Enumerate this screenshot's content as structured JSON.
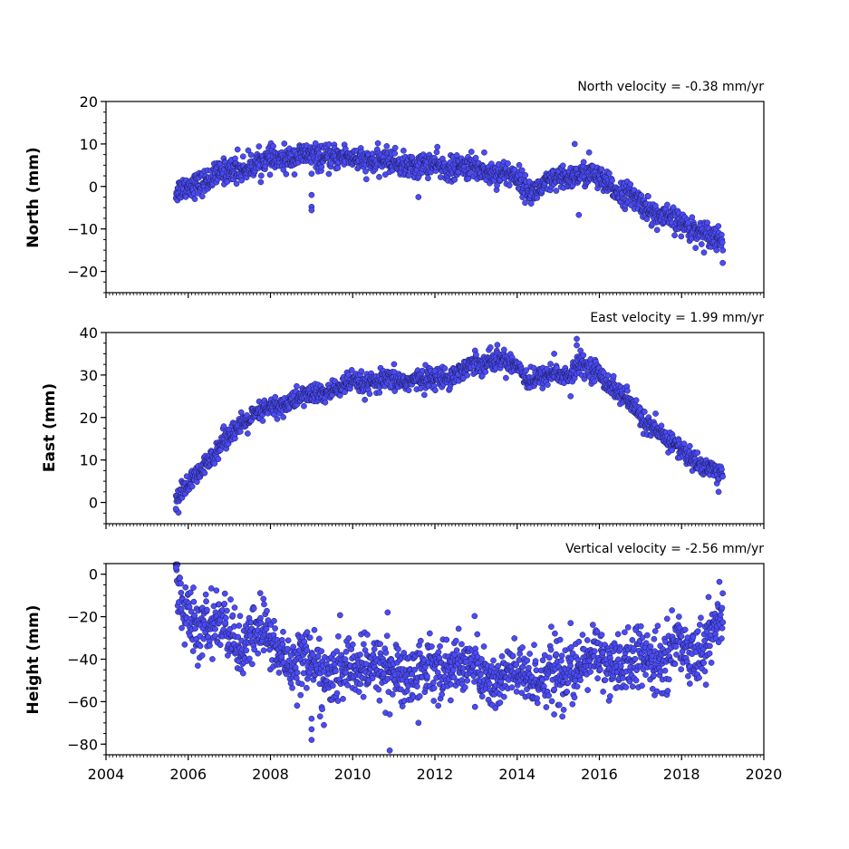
{
  "chart_data": [
    {
      "type": "scatter",
      "ylabel": "North (mm)",
      "annotation": "North velocity = -0.38 mm/yr",
      "xlim": [
        2004,
        2020
      ],
      "ylim": [
        -25,
        20
      ],
      "yticks": [
        -20,
        -10,
        0,
        10,
        20
      ],
      "ytick_labels": [
        "−20",
        "−10",
        "0",
        "10",
        "20"
      ],
      "x_tick_labels_shown": false,
      "trend": [
        [
          2005.7,
          -1.5
        ],
        [
          2006.5,
          2
        ],
        [
          2007.5,
          5
        ],
        [
          2008.5,
          7
        ],
        [
          2009.5,
          7
        ],
        [
          2010.5,
          6
        ],
        [
          2011.5,
          5
        ],
        [
          2012.5,
          4.5
        ],
        [
          2013.5,
          3.5
        ],
        [
          2014.0,
          2
        ],
        [
          2014.3,
          -1
        ],
        [
          2014.8,
          0.5
        ],
        [
          2015.4,
          3
        ],
        [
          2015.8,
          2.5
        ],
        [
          2016.5,
          -1
        ],
        [
          2017.0,
          -4
        ],
        [
          2017.5,
          -7
        ],
        [
          2018.0,
          -9
        ],
        [
          2018.5,
          -10.5
        ],
        [
          2019.0,
          -13
        ]
      ],
      "scatter_amp": 1.4,
      "outliers": [
        [
          2009.0,
          -4.8
        ],
        [
          2009.0,
          -5.6
        ],
        [
          2009.0,
          -2
        ],
        [
          2009.0,
          3
        ],
        [
          2011.6,
          -2.5
        ],
        [
          2015.4,
          10
        ],
        [
          2015.75,
          8
        ],
        [
          2015.5,
          -6.7
        ],
        [
          2013.2,
          8
        ],
        [
          2007.2,
          8.7
        ],
        [
          2019.0,
          -18
        ],
        [
          2018.85,
          -15
        ]
      ],
      "point_count": 1500,
      "colors": {
        "fill": "#4b4bf5",
        "edge": "#1a1a55"
      }
    },
    {
      "type": "scatter",
      "ylabel": "East (mm)",
      "annotation": "East velocity = 1.99 mm/yr",
      "xlim": [
        2004,
        2020
      ],
      "ylim": [
        -5,
        40
      ],
      "yticks": [
        0,
        10,
        20,
        30,
        40
      ],
      "ytick_labels": [
        "0",
        "10",
        "20",
        "30",
        "40"
      ],
      "x_tick_labels_shown": false,
      "trend": [
        [
          2005.7,
          0
        ],
        [
          2006.0,
          4
        ],
        [
          2006.5,
          10
        ],
        [
          2007.0,
          16
        ],
        [
          2007.5,
          20
        ],
        [
          2008.0,
          22
        ],
        [
          2008.5,
          24
        ],
        [
          2009.5,
          26.5
        ],
        [
          2010.0,
          28
        ],
        [
          2011.0,
          28.5
        ],
        [
          2011.5,
          29
        ],
        [
          2012.0,
          29
        ],
        [
          2012.5,
          30.5
        ],
        [
          2013.0,
          32.5
        ],
        [
          2013.5,
          34
        ],
        [
          2014.0,
          32
        ],
        [
          2014.3,
          29
        ],
        [
          2014.8,
          30
        ],
        [
          2015.3,
          30
        ],
        [
          2015.5,
          33
        ],
        [
          2016.0,
          30
        ],
        [
          2016.5,
          26
        ],
        [
          2017.0,
          20
        ],
        [
          2017.5,
          16
        ],
        [
          2018.0,
          12
        ],
        [
          2018.5,
          9
        ],
        [
          2019.0,
          6
        ]
      ],
      "scatter_amp": 1.2,
      "outliers": [
        [
          2015.45,
          38.5
        ],
        [
          2015.45,
          37
        ],
        [
          2013.35,
          36.5
        ],
        [
          2014.9,
          35
        ],
        [
          2012.0,
          31
        ],
        [
          2018.9,
          2.5
        ],
        [
          2005.7,
          -1.5
        ],
        [
          2014.3,
          27
        ],
        [
          2015.3,
          25
        ]
      ],
      "point_count": 1500,
      "colors": {
        "fill": "#4b4bf5",
        "edge": "#1a1a55"
      }
    },
    {
      "type": "scatter",
      "ylabel": "Height (mm)",
      "annotation": "Vertical velocity = -2.56 mm/yr",
      "xlim": [
        2004,
        2020
      ],
      "ylim": [
        -85,
        5
      ],
      "yticks": [
        -80,
        -60,
        -40,
        -20,
        0
      ],
      "ytick_labels": [
        "−80",
        "−60",
        "−40",
        "−20",
        "0"
      ],
      "x_tick_labels_shown": true,
      "xticks": [
        2004,
        2006,
        2008,
        2010,
        2012,
        2014,
        2016,
        2018,
        2020
      ],
      "xtick_labels": [
        "2004",
        "2006",
        "2008",
        "2010",
        "2012",
        "2014",
        "2016",
        "2018",
        "2020"
      ],
      "trend": [
        [
          2005.7,
          0
        ],
        [
          2005.9,
          -20
        ],
        [
          2006.2,
          -25
        ],
        [
          2006.6,
          -22
        ],
        [
          2007.0,
          -28
        ],
        [
          2007.3,
          -35
        ],
        [
          2007.7,
          -25
        ],
        [
          2008.0,
          -33
        ],
        [
          2008.5,
          -40
        ],
        [
          2009.0,
          -42
        ],
        [
          2009.5,
          -48
        ],
        [
          2010.0,
          -45
        ],
        [
          2010.5,
          -42
        ],
        [
          2011.0,
          -48
        ],
        [
          2011.5,
          -45
        ],
        [
          2012.0,
          -45
        ],
        [
          2012.5,
          -42
        ],
        [
          2013.0,
          -45
        ],
        [
          2013.5,
          -50
        ],
        [
          2014.0,
          -48
        ],
        [
          2014.5,
          -48
        ],
        [
          2015.0,
          -48
        ],
        [
          2015.5,
          -44
        ],
        [
          2016.0,
          -38
        ],
        [
          2016.5,
          -45
        ],
        [
          2017.0,
          -40
        ],
        [
          2017.5,
          -40
        ],
        [
          2018.0,
          -34
        ],
        [
          2018.5,
          -35
        ],
        [
          2019.0,
          -22
        ]
      ],
      "scatter_amp": 7,
      "outliers": [
        [
          2009.0,
          -68
        ],
        [
          2009.0,
          -73
        ],
        [
          2009.0,
          -78
        ],
        [
          2009.3,
          -71
        ],
        [
          2010.9,
          -83
        ],
        [
          2010.9,
          -66
        ],
        [
          2010.85,
          -18
        ],
        [
          2011.6,
          -70
        ],
        [
          2015.3,
          -23
        ],
        [
          2015.1,
          -67
        ],
        [
          2014.9,
          -66
        ],
        [
          2019.0,
          -9
        ],
        [
          2005.7,
          3
        ],
        [
          2016.7,
          -25
        ]
      ],
      "point_count": 1500,
      "colors": {
        "fill": "#4b4bf5",
        "edge": "#1a1a55"
      }
    }
  ]
}
